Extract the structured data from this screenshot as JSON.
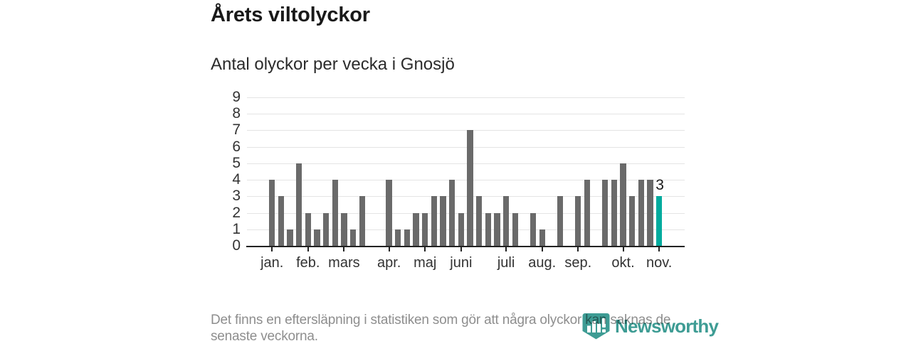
{
  "header": {
    "title": "Årets viltolyckor",
    "subtitle": "Antal olyckor per vecka i Gnosjö"
  },
  "footer": {
    "line1": "Det finns en eftersläpning i statistiken som gör att några olyckor kan saknas de",
    "line2": "senaste veckorna."
  },
  "logo": {
    "text": "Newsworthy",
    "icon": "newsworthy-banner-chart-icon",
    "color": "#3e9c94"
  },
  "chart_data": {
    "type": "bar",
    "title": "Årets viltolyckor",
    "subtitle": "Antal olyckor per vecka i Gnosjö",
    "x_unit": "vecka",
    "values": [
      4,
      3,
      1,
      5,
      2,
      1,
      2,
      4,
      2,
      1,
      3,
      0,
      0,
      4,
      1,
      1,
      2,
      2,
      3,
      3,
      4,
      2,
      7,
      3,
      2,
      2,
      3,
      2,
      0,
      2,
      1,
      0,
      3,
      0,
      3,
      4,
      0,
      4,
      4,
      5,
      3,
      4,
      4,
      3
    ],
    "month_ticks": [
      {
        "label": "jan.",
        "week": 1
      },
      {
        "label": "feb.",
        "week": 5
      },
      {
        "label": "mars",
        "week": 9
      },
      {
        "label": "apr.",
        "week": 14
      },
      {
        "label": "maj",
        "week": 18
      },
      {
        "label": "juni",
        "week": 22
      },
      {
        "label": "juli",
        "week": 27
      },
      {
        "label": "aug.",
        "week": 31
      },
      {
        "label": "sep.",
        "week": 35
      },
      {
        "label": "okt.",
        "week": 40
      },
      {
        "label": "nov.",
        "week": 44
      }
    ],
    "yticks": [
      0,
      1,
      2,
      3,
      4,
      5,
      6,
      7,
      8,
      9
    ],
    "ylim": [
      0,
      9
    ],
    "grid": "horizontal",
    "highlight_last_bar": {
      "index": 44,
      "value": 3,
      "label": "3"
    },
    "colors": {
      "bar": "#6a6a6a",
      "highlight": "#00ab9e",
      "gridline": "#e4e4e4",
      "axis": "#222222",
      "value_label": "#1a1a1a"
    }
  }
}
